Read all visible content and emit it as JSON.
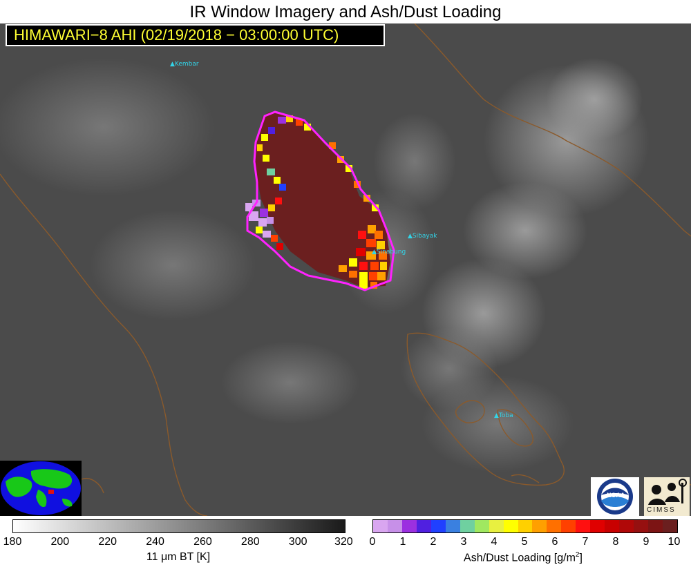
{
  "title": "IR Window Imagery and Ash/Dust Loading",
  "banner": "HIMAWARI−8 AHI (02/19/2018 − 03:00:00 UTC)",
  "volcanoes": [
    {
      "name": "Kembar"
    },
    {
      "name": "Sibayak"
    },
    {
      "name": "Sinabung"
    },
    {
      "name": "Toba"
    }
  ],
  "colors": {
    "background_gray": "#4b4b4b",
    "ash_outline": "#ff22ff",
    "coastline": "#8b5a2b",
    "volcano_label": "#33d4e8",
    "banner_text": "#ffff33",
    "ash_core": "#6b1f1f"
  },
  "bt_colorbar": {
    "ticks": [
      "180",
      "200",
      "220",
      "240",
      "260",
      "280",
      "300",
      "320"
    ],
    "label_prefix": "11 ",
    "label_mu": "μm",
    "label_suffix": " BT [K]"
  },
  "ash_colorbar": {
    "ticks": [
      "0",
      "1",
      "2",
      "3",
      "4",
      "5",
      "6",
      "7",
      "8",
      "9",
      "10"
    ],
    "label_main": "Ash/Dust Loading [g/m",
    "label_sup": "2",
    "label_end": "]",
    "colors": [
      "#d9a6f0",
      "#c790e8",
      "#9b30e0",
      "#5020e0",
      "#2040ff",
      "#3a80e0",
      "#6fd0a0",
      "#a0e860",
      "#e8f040",
      "#ffff00",
      "#ffd000",
      "#ffa000",
      "#ff7000",
      "#ff4000",
      "#ff1010",
      "#e00000",
      "#c80000",
      "#b00808",
      "#961010",
      "#7c1414",
      "#6b1f1f"
    ]
  },
  "logos": {
    "noaa": "NOAA",
    "cimss": "CIMSS",
    "globe": "globe-map"
  }
}
